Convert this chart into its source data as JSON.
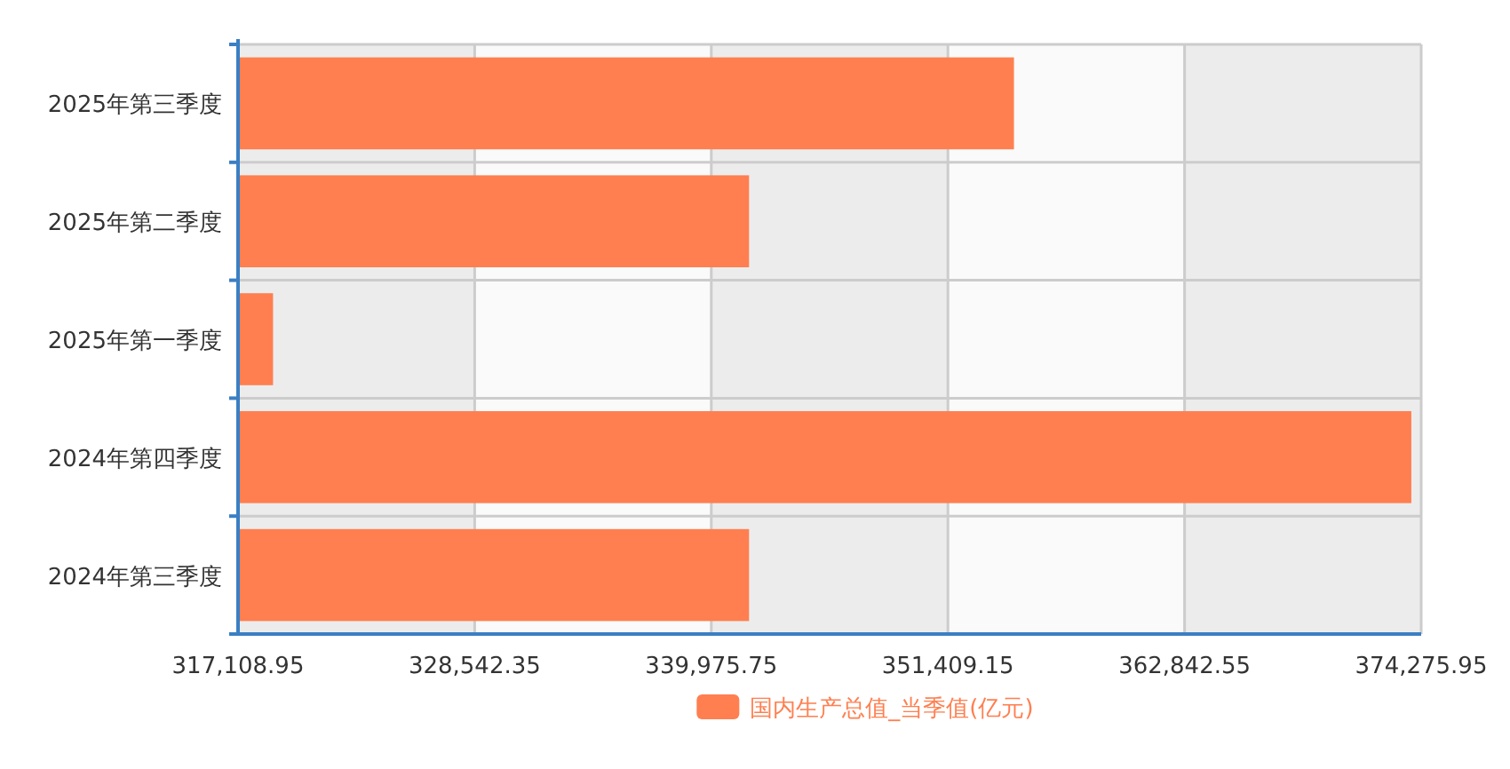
{
  "chart_data": {
    "type": "bar",
    "orientation": "horizontal",
    "categories": [
      "2025年第三季度",
      "2025年第二季度",
      "2025年第一季度",
      "2024年第四季度",
      "2024年第三季度"
    ],
    "series": [
      {
        "name": "国内生产总值_当季值(亿元)",
        "color": "#ff7f50",
        "values": [
          354600,
          341800,
          318800,
          373800,
          341800
        ]
      }
    ],
    "xlim": [
      317108.95,
      374275.95
    ],
    "xticks": [
      {
        "value": 317108.95,
        "label": "317,108.95"
      },
      {
        "value": 328542.35,
        "label": "328,542.35"
      },
      {
        "value": 339975.75,
        "label": "339,975.75"
      },
      {
        "value": 351409.15,
        "label": "351,409.15"
      },
      {
        "value": 362842.55,
        "label": "362,842.55"
      },
      {
        "value": 374275.95,
        "label": "374,275.95"
      }
    ],
    "grid": true,
    "legend": "bottom"
  }
}
